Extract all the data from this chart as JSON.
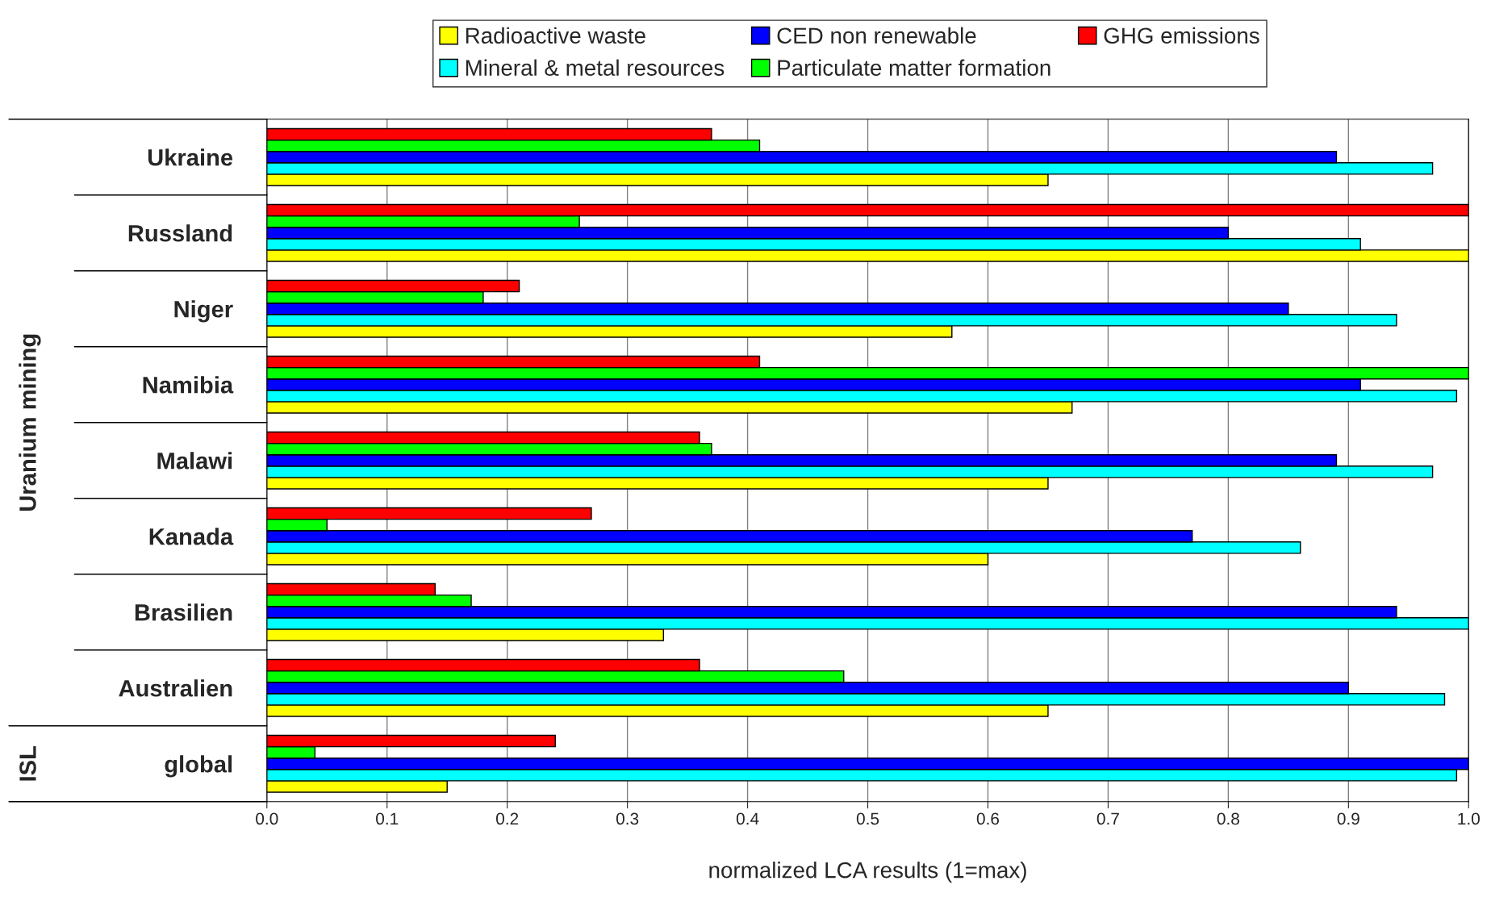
{
  "chart_data": {
    "type": "bar",
    "orientation": "horizontal",
    "xlabel": "normalized LCA results (1=max)",
    "categories": [
      "Ukraine",
      "Russland",
      "Niger",
      "Namibia",
      "Malawi",
      "Kanada",
      "Brasilien",
      "Australien",
      "global"
    ],
    "series": [
      {
        "name": "Radioactive waste",
        "color": "#ffff00",
        "values": [
          0.65,
          1.0,
          0.57,
          0.67,
          0.65,
          0.6,
          0.33,
          0.65,
          0.15
        ]
      },
      {
        "name": "Mineral & metal resources",
        "color": "#00ffff",
        "values": [
          0.97,
          0.91,
          0.94,
          0.99,
          0.97,
          0.86,
          1.0,
          0.98,
          0.99
        ]
      },
      {
        "name": "CED non renewable",
        "color": "#0000ff",
        "values": [
          0.89,
          0.8,
          0.85,
          0.91,
          0.89,
          0.77,
          0.94,
          0.9,
          1.0
        ]
      },
      {
        "name": "Particulate matter formation",
        "color": "#00ff00",
        "values": [
          0.41,
          0.26,
          0.18,
          1.0,
          0.37,
          0.05,
          0.17,
          0.48,
          0.04
        ]
      },
      {
        "name": "GHG emissions",
        "color": "#ff0000",
        "values": [
          0.37,
          1.0,
          0.21,
          0.41,
          0.36,
          0.27,
          0.14,
          0.36,
          0.24
        ]
      }
    ],
    "xlim": [
      0,
      1.0
    ],
    "xticks": [
      {
        "value": 0,
        "label": "0.0"
      },
      0.1,
      0.2,
      0.3,
      0.4,
      0.5,
      0.6,
      0.7,
      0.8,
      0.9,
      {
        "value": 1.0,
        "label": "1.0"
      }
    ],
    "annotations": [
      "Uranium mining",
      "ISL"
    ],
    "grid": "x",
    "legend": "top"
  }
}
